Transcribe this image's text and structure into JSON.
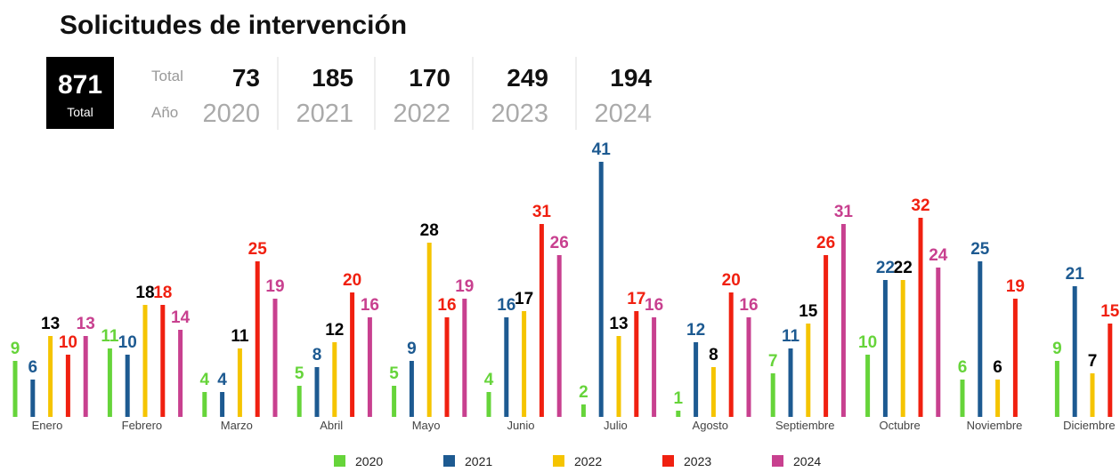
{
  "chart_data": {
    "type": "bar",
    "title": "Solicitudes de intervención",
    "summary": {
      "total": 871,
      "total_label": "Total",
      "row_labels": [
        "Total",
        "Año"
      ],
      "totals": [
        73,
        185,
        170,
        249,
        194
      ]
    },
    "categories": [
      "Enero",
      "Febrero",
      "Marzo",
      "Abril",
      "Mayo",
      "Junio",
      "Julio",
      "Agosto",
      "Septiembre",
      "Octubre",
      "Noviembre",
      "Diciembre"
    ],
    "series": [
      {
        "name": "2020",
        "color": "#66d43a",
        "label_color": "#66d43a",
        "values": [
          9,
          11,
          4,
          5,
          5,
          4,
          2,
          1,
          7,
          10,
          6,
          9
        ]
      },
      {
        "name": "2021",
        "color": "#1d5a91",
        "label_color": "#1d5a91",
        "values": [
          6,
          10,
          4,
          8,
          9,
          16,
          41,
          12,
          11,
          22,
          25,
          21
        ]
      },
      {
        "name": "2022",
        "color": "#f5c400",
        "label_color": "#000000",
        "values": [
          13,
          18,
          11,
          12,
          28,
          17,
          13,
          8,
          15,
          22,
          6,
          7
        ]
      },
      {
        "name": "2023",
        "color": "#f02010",
        "label_color": "#f02010",
        "values": [
          10,
          18,
          25,
          20,
          16,
          31,
          17,
          20,
          26,
          32,
          19,
          15
        ]
      },
      {
        "name": "2024",
        "color": "#c8408f",
        "label_color": "#c8408f",
        "values": [
          13,
          14,
          19,
          16,
          19,
          26,
          16,
          16,
          31,
          24,
          null,
          null
        ]
      }
    ]
  }
}
